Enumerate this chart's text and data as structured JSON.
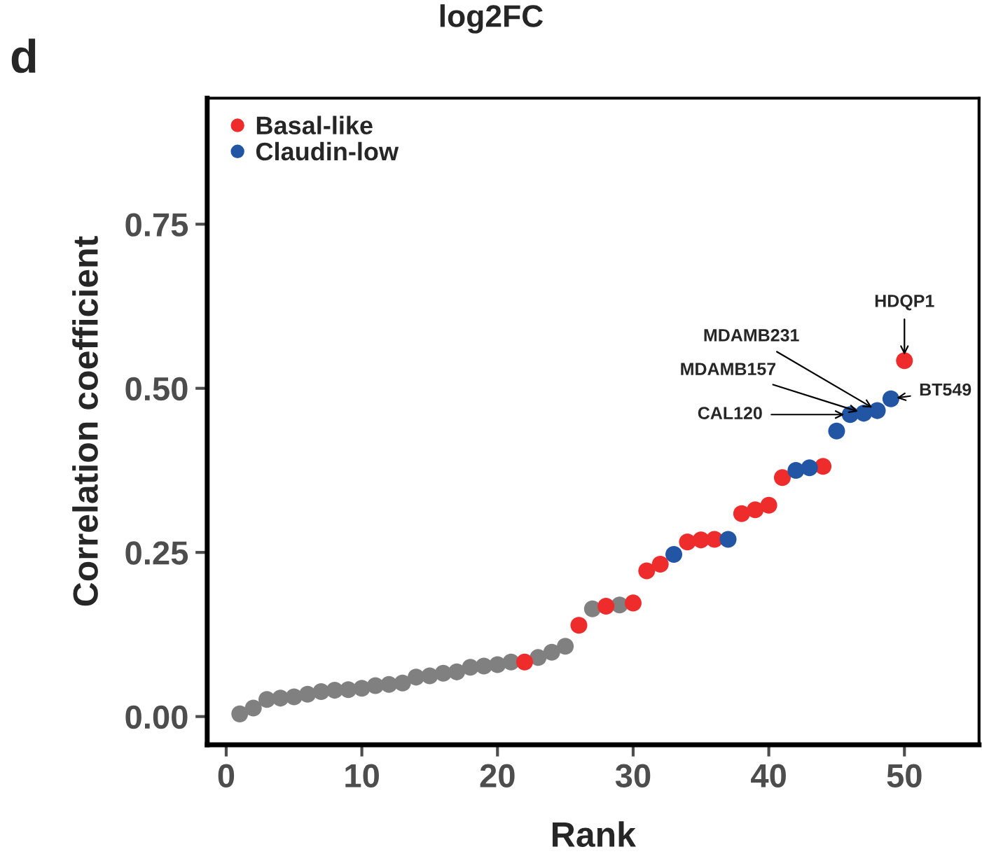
{
  "chart_data": {
    "type": "scatter",
    "title": "log2FC",
    "xlabel": "Rank",
    "ylabel": "Correlation coefficient",
    "xlim": [
      -1.4,
      55.5
    ],
    "ylim": [
      -0.043,
      0.942
    ],
    "xticks": [
      0,
      10,
      20,
      30,
      40,
      50
    ],
    "yticks": [
      {
        "value": 0,
        "label": "0.00"
      },
      {
        "value": 0.25,
        "label": "0.25"
      },
      {
        "value": 0.5,
        "label": "0.50"
      },
      {
        "value": 0.75,
        "label": "0.75"
      }
    ],
    "grid": false,
    "legend": "top left",
    "marker": "circle",
    "series": [
      {
        "color": "#808080",
        "x": [
          1,
          2,
          3,
          4,
          5,
          6,
          7,
          8,
          9,
          10,
          11,
          12,
          13,
          14,
          15,
          16,
          17,
          18,
          19,
          20,
          21,
          23,
          24,
          25,
          27,
          29
        ],
        "values": [
          0.004,
          0.013,
          0.026,
          0.028,
          0.03,
          0.034,
          0.038,
          0.04,
          0.041,
          0.043,
          0.047,
          0.049,
          0.051,
          0.06,
          0.062,
          0.066,
          0.068,
          0.075,
          0.077,
          0.079,
          0.083,
          0.09,
          0.098,
          0.107,
          0.164,
          0.17
        ]
      },
      {
        "name": "Basal-like",
        "color": "#ee2c2c",
        "x": [
          22,
          26,
          28,
          30,
          31,
          32,
          34,
          35,
          36,
          38,
          39,
          40,
          41,
          44,
          50
        ],
        "values": [
          0.083,
          0.139,
          0.168,
          0.173,
          0.222,
          0.232,
          0.266,
          0.269,
          0.27,
          0.309,
          0.315,
          0.322,
          0.364,
          0.381,
          0.542
        ]
      },
      {
        "name": "Claudin-low",
        "color": "#2255a4",
        "x": [
          33,
          37,
          42,
          43,
          45,
          46,
          47,
          48,
          49
        ],
        "values": [
          0.247,
          0.27,
          0.375,
          0.379,
          0.435,
          0.46,
          0.462,
          0.466,
          0.484
        ]
      }
    ],
    "annotations": [
      "d",
      {
        "text": "HDQP1",
        "x": 50,
        "y": 0.542
      },
      {
        "text": "BT549",
        "x": 49,
        "y": 0.484
      },
      {
        "text": "MDAMB231",
        "x": 48,
        "y": 0.466
      },
      {
        "text": "MDAMB157",
        "x": 47,
        "y": 0.462
      },
      {
        "text": "CAL120",
        "x": 46,
        "y": 0.46
      }
    ]
  }
}
